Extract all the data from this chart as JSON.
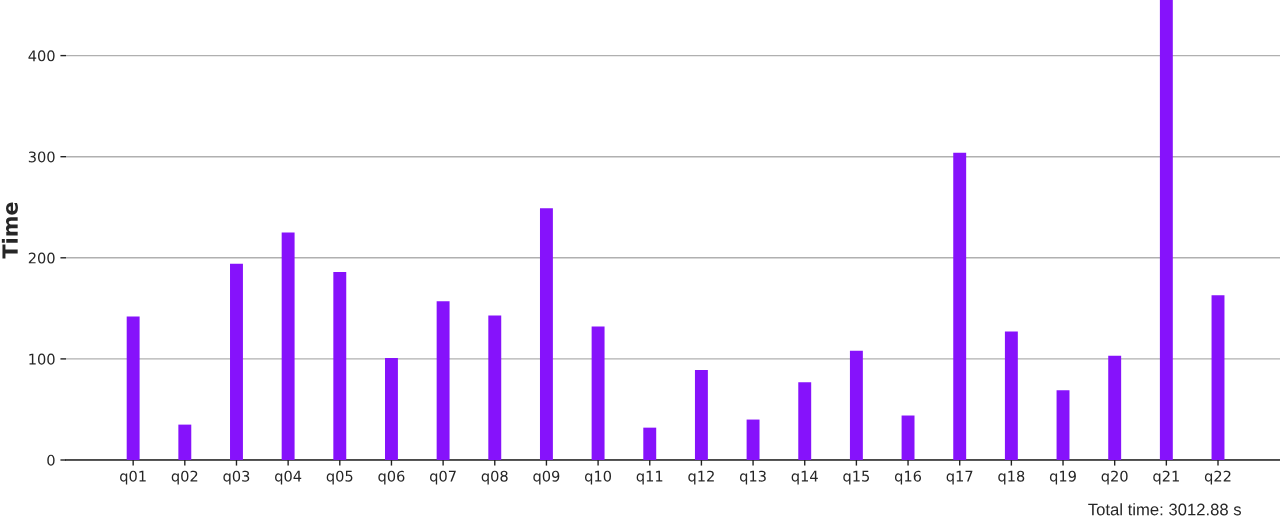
{
  "chart_data": {
    "type": "bar",
    "ylabel": "Time",
    "categories": [
      "q01",
      "q02",
      "q03",
      "q04",
      "q05",
      "q06",
      "q07",
      "q08",
      "q09",
      "q10",
      "q11",
      "q12",
      "q13",
      "q14",
      "q15",
      "q16",
      "q17",
      "q18",
      "q19",
      "q20",
      "q21",
      "q22"
    ],
    "series": [
      {
        "color": "#8612fb",
        "values": [
          142,
          35,
          194,
          225,
          186,
          101,
          157,
          143,
          249,
          132,
          32,
          89,
          40,
          77,
          108,
          44,
          304,
          127,
          69,
          103,
          455,
          163
        ]
      }
    ],
    "ylim": [
      0,
      455
    ],
    "yticks": [
      0,
      100,
      200,
      300,
      400
    ],
    "grid": "y",
    "annotations": [
      "Total time: 3012.88 s"
    ]
  }
}
